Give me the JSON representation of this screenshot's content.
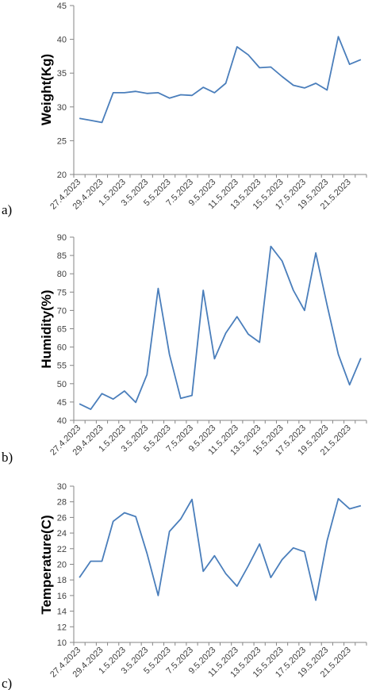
{
  "colors": {
    "line": "#4a7ebb",
    "axis": "#868686"
  },
  "chart_data": [
    {
      "type": "line",
      "panel_label": "a)",
      "ylabel": "Weight(Kg)",
      "ylim": [
        20,
        45
      ],
      "yticks": [
        20,
        25,
        30,
        35,
        40,
        45
      ],
      "x_labels": [
        "27.4.2023",
        "29.4.2023",
        "1.5.2023",
        "3.5.2023",
        "5.5.2023",
        "7.5.2023",
        "9.5.2023",
        "11.5.2023",
        "13.5.2023",
        "15.5.2023",
        "17.5.2023",
        "19.5.2023",
        "21.5.2023"
      ],
      "values": [
        28.3,
        28.0,
        27.7,
        32.1,
        32.1,
        32.3,
        32.0,
        32.1,
        31.3,
        31.8,
        31.7,
        32.9,
        32.1,
        33.5,
        38.9,
        37.7,
        35.8,
        35.9,
        34.5,
        33.2,
        32.8,
        33.5,
        32.5,
        40.4,
        36.3,
        37.0
      ]
    },
    {
      "type": "line",
      "panel_label": "b)",
      "ylabel": "Humidity(%)",
      "ylim": [
        40,
        90
      ],
      "yticks": [
        40,
        45,
        50,
        55,
        60,
        65,
        70,
        75,
        80,
        85,
        90
      ],
      "x_labels": [
        "27.4.2023",
        "29.4.2023",
        "1.5.2023",
        "3.5.2023",
        "5.5.2023",
        "7.5.2023",
        "9.5.2023",
        "11.5.2023",
        "13.5.2023",
        "15.5.2023",
        "17.5.2023",
        "19.5.2023",
        "21.5.2023"
      ],
      "values": [
        44.5,
        43.0,
        47.3,
        45.8,
        48.0,
        44.9,
        52.5,
        76.0,
        58.0,
        46.0,
        46.8,
        75.5,
        56.8,
        63.8,
        68.3,
        63.5,
        61.3,
        87.5,
        83.5,
        75.5,
        70.0,
        85.7,
        71.5,
        58.0,
        49.7,
        57.0
      ]
    },
    {
      "type": "line",
      "panel_label": "c)",
      "ylabel": "Temperature(C)",
      "ylim": [
        10,
        30
      ],
      "yticks": [
        10,
        12,
        14,
        16,
        18,
        20,
        22,
        24,
        26,
        28,
        30
      ],
      "x_labels": [
        "27.4.2023",
        "29.4.2023",
        "1.5.2023",
        "3.5.2023",
        "5.5.2023",
        "7.5.2023",
        "9.5.2023",
        "11.5.2023",
        "13.5.2023",
        "15.5.2023",
        "17.5.2023",
        "19.5.2023",
        "21.5.2023"
      ],
      "values": [
        18.3,
        20.4,
        20.4,
        25.5,
        26.6,
        26.1,
        21.4,
        16.0,
        24.2,
        25.8,
        28.3,
        19.1,
        21.1,
        18.8,
        17.2,
        19.8,
        22.6,
        18.3,
        20.6,
        22.1,
        21.6,
        15.4,
        23.0,
        28.4,
        27.1,
        27.5
      ]
    }
  ]
}
